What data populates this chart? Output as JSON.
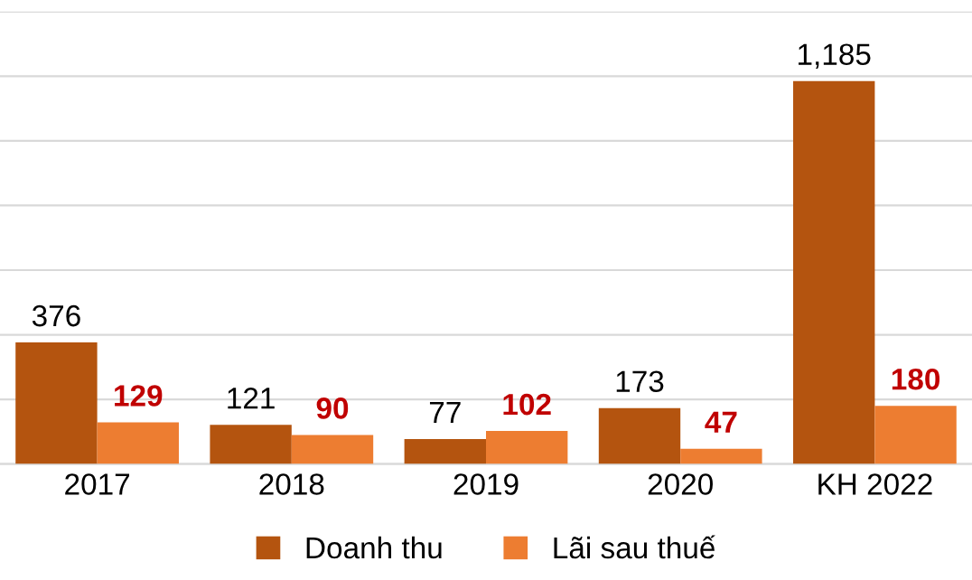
{
  "chart_data": {
    "type": "bar",
    "categories": [
      "2017",
      "2018",
      "2019",
      "2020",
      "KH 2022"
    ],
    "series": [
      {
        "name": "Doanh thu",
        "color": "#b4540f",
        "values": [
          376,
          121,
          77,
          173,
          1185
        ],
        "value_labels": [
          "376",
          "121",
          "77",
          "173",
          "1,185"
        ]
      },
      {
        "name": "Lãi sau thuế",
        "color": "#ed7d31",
        "values": [
          129,
          90,
          102,
          47,
          180
        ],
        "value_labels": [
          "129",
          "90",
          "102",
          "47",
          "180"
        ]
      }
    ],
    "ylim": [
      0,
      1400
    ],
    "yticks": [
      {
        "value": 0,
        "label": null
      },
      {
        "value": 200,
        "label": null
      },
      {
        "value": 400,
        "label": null
      },
      {
        "value": 600,
        "label": null
      },
      {
        "value": 800,
        "label": null
      },
      {
        "value": 1000,
        "label": null
      },
      {
        "value": 1200,
        "label": null
      },
      {
        "value": 1400,
        "label": null
      }
    ],
    "grid": "y",
    "legend": "bottom",
    "tick_labels": "x"
  }
}
